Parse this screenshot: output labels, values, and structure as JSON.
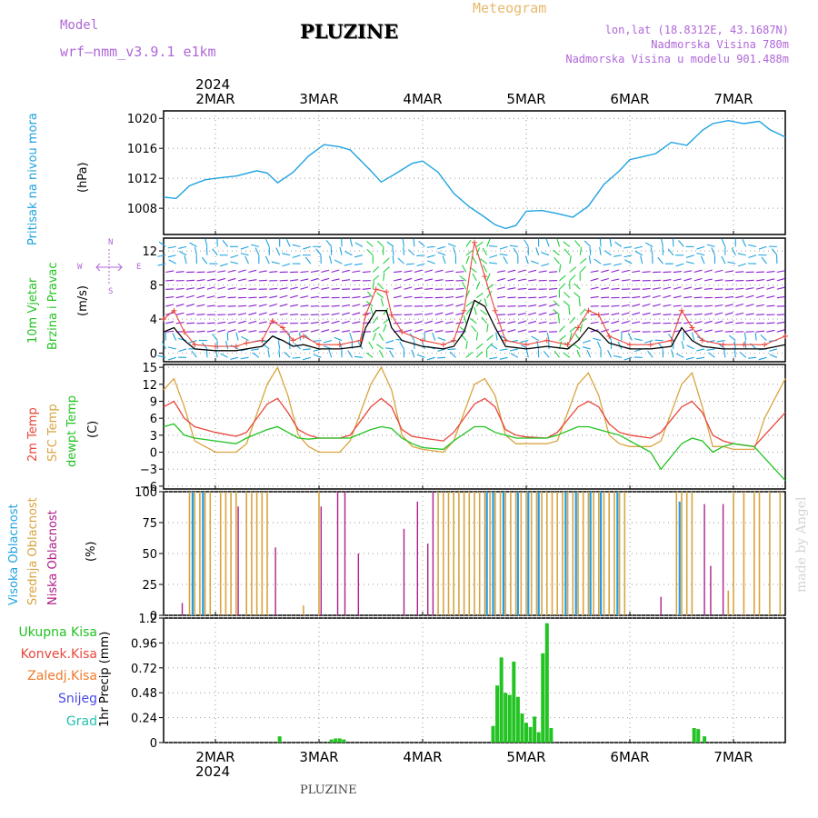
{
  "header": {
    "model_label": "Model",
    "model_value": "wrf–nmm_v3.9.1  e1km",
    "station": "PLUZINE",
    "meteogram_label": "Meteogram",
    "coords": "lon,lat (18.8312E, 43.1687N)",
    "altitude": "Nadmorska Visina 780m",
    "model_altitude": "Nadmorska Visina u modelu 901.488m",
    "year_top": "2024",
    "year_bottom": "2024",
    "footer_station": "PLUZINE",
    "watermark": "made by Angel"
  },
  "colors": {
    "pressure": "#1fa3e0",
    "temp2m": "#e8473c",
    "sfc": "#d9a440",
    "dewpt": "#22c322",
    "high_cloud": "#1f9ee6",
    "mid_cloud": "#d9a440",
    "low_cloud": "#b0208a",
    "precip": "#22c322",
    "convective": "#e8473c",
    "frozen": "#f07a2a",
    "snow": "#4a4ae6",
    "graupel": "#22c3b0",
    "wind_arrow": "#8a1fd0",
    "wind_alt": "#1fa3e0",
    "wind_green": "#22d040",
    "wind_speed": "#000000",
    "wind_gust": "#e8473c"
  },
  "chart_data": [
    {
      "type": "line",
      "panel": "pressure",
      "ylabel_main": "Pritisak na nivou mora",
      "ylabel_unit": "(hPa)",
      "ylim": [
        1004.5,
        1021
      ],
      "yticks": [
        "1020",
        "1016",
        "1012",
        "1008"
      ],
      "x_days": [
        "2MAR",
        "3MAR",
        "4MAR",
        "5MAR",
        "6MAR",
        "7MAR"
      ],
      "x": [
        1.5,
        1.62,
        1.75,
        1.9,
        2.0,
        2.2,
        2.4,
        2.5,
        2.6,
        2.75,
        2.9,
        3.05,
        3.2,
        3.3,
        3.5,
        3.6,
        3.75,
        3.9,
        4.0,
        4.15,
        4.3,
        4.45,
        4.6,
        4.7,
        4.8,
        4.9,
        5.0,
        5.15,
        5.3,
        5.45,
        5.6,
        5.75,
        5.9,
        6.0,
        6.1,
        6.25,
        6.4,
        6.55,
        6.7,
        6.8,
        6.95,
        7.1,
        7.25,
        7.35,
        7.5
      ],
      "y": [
        1009.5,
        1009.3,
        1011.0,
        1011.8,
        1012.0,
        1012.3,
        1013.0,
        1012.7,
        1011.4,
        1012.8,
        1015.0,
        1016.5,
        1016.2,
        1015.8,
        1013.0,
        1011.5,
        1012.7,
        1014.0,
        1014.3,
        1012.8,
        1010.0,
        1008.2,
        1006.8,
        1005.8,
        1005.3,
        1005.7,
        1007.6,
        1007.7,
        1007.3,
        1006.8,
        1008.3,
        1011.2,
        1013.0,
        1014.5,
        1014.8,
        1015.3,
        1016.8,
        1016.4,
        1018.4,
        1019.3,
        1019.7,
        1019.3,
        1019.6,
        1018.5,
        1017.5
      ]
    },
    {
      "type": "line",
      "panel": "wind",
      "ylabel_main": "10m Vjetar",
      "ylabel_sub": "Brzina i Pravac",
      "ylabel_unit": "(m/s)",
      "compass_n": "N",
      "compass_w": "W",
      "compass_e": "E",
      "compass_s": "S",
      "ylim": [
        -1,
        13.5
      ],
      "yticks": [
        "12",
        "8",
        "4",
        "0"
      ],
      "series": [
        {
          "x": [
            1.5,
            1.6,
            1.7,
            1.8,
            2.0,
            2.2,
            2.3,
            2.45,
            2.55,
            2.65,
            2.75,
            2.85,
            3.0,
            3.2,
            3.4,
            3.45,
            3.55,
            3.65,
            3.7,
            3.8,
            4.0,
            4.2,
            4.3,
            4.4,
            4.5,
            4.6,
            4.7,
            4.8,
            5.0,
            5.2,
            5.4,
            5.5,
            5.6,
            5.7,
            5.8,
            6.0,
            6.2,
            6.4,
            6.5,
            6.6,
            6.7,
            6.9,
            7.1,
            7.3,
            7.5
          ],
          "y": [
            2.5,
            3.0,
            1.5,
            0.5,
            0.3,
            0.3,
            0.5,
            0.8,
            2.0,
            1.5,
            0.8,
            1.0,
            0.5,
            0.5,
            0.8,
            3.0,
            5.0,
            5.0,
            3.0,
            1.5,
            0.8,
            0.5,
            0.8,
            2.5,
            6.2,
            5.5,
            3.0,
            0.8,
            0.5,
            0.8,
            0.5,
            1.5,
            3.0,
            2.5,
            1.2,
            0.5,
            0.5,
            0.8,
            3.0,
            1.5,
            0.8,
            0.5,
            0.5,
            0.5,
            1.0
          ]
        },
        {
          "x": [
            1.5,
            1.6,
            1.7,
            1.8,
            2.0,
            2.2,
            2.3,
            2.45,
            2.55,
            2.65,
            2.75,
            2.85,
            3.0,
            3.2,
            3.4,
            3.45,
            3.55,
            3.65,
            3.7,
            3.8,
            4.0,
            4.2,
            4.3,
            4.4,
            4.5,
            4.6,
            4.7,
            4.8,
            5.0,
            5.2,
            5.4,
            5.5,
            5.6,
            5.7,
            5.8,
            6.0,
            6.2,
            6.4,
            6.5,
            6.6,
            6.7,
            6.9,
            7.1,
            7.3,
            7.5
          ],
          "y": [
            4.0,
            5.0,
            2.5,
            1.0,
            0.8,
            0.8,
            1.2,
            1.5,
            3.8,
            3.0,
            1.5,
            2.0,
            1.0,
            1.0,
            1.5,
            4.5,
            7.5,
            7.2,
            4.5,
            2.5,
            1.5,
            1.0,
            1.5,
            5.0,
            13.0,
            9.0,
            5.0,
            1.5,
            1.0,
            1.5,
            1.0,
            3.0,
            5.0,
            4.5,
            2.0,
            1.0,
            1.0,
            1.5,
            5.0,
            3.0,
            1.5,
            1.0,
            1.0,
            1.0,
            2.0
          ]
        }
      ]
    },
    {
      "type": "line",
      "panel": "temperature",
      "ylabel_main": "2m Temp",
      "ylabel_sub": "SFC Temp",
      "ylabel_third": "dewpt Temp",
      "ylabel_unit": "(C)",
      "ylim": [
        -6.5,
        15.5
      ],
      "yticks": [
        "15",
        "12",
        "9",
        "6",
        "3",
        "0",
        "−3",
        "−6"
      ],
      "x": [
        1.5,
        1.6,
        1.7,
        1.8,
        2.0,
        2.2,
        2.3,
        2.5,
        2.6,
        2.7,
        2.8,
        2.9,
        3.0,
        3.2,
        3.3,
        3.5,
        3.6,
        3.7,
        3.8,
        3.9,
        4.0,
        4.2,
        4.3,
        4.5,
        4.6,
        4.7,
        4.8,
        4.9,
        5.0,
        5.2,
        5.3,
        5.5,
        5.6,
        5.7,
        5.8,
        5.9,
        6.0,
        6.2,
        6.3,
        6.5,
        6.6,
        6.7,
        6.8,
        6.9,
        7.0,
        7.2,
        7.3,
        7.5
      ],
      "series": [
        {
          "name": "2m Temp",
          "y": [
            8,
            9,
            6,
            4.5,
            3.5,
            2.8,
            3.5,
            8.5,
            9.5,
            7,
            4,
            3,
            2.5,
            2.5,
            3,
            8,
            9.5,
            8,
            4,
            2.8,
            2.5,
            2,
            3.5,
            8.5,
            9.5,
            8,
            4,
            3,
            2.7,
            2.5,
            3.5,
            8,
            9,
            8,
            5,
            3.5,
            3,
            2.5,
            3.5,
            8,
            9,
            7,
            3,
            2,
            1.5,
            1,
            3,
            7
          ]
        },
        {
          "name": "SFC Temp",
          "y": [
            11,
            13,
            8,
            2,
            0,
            0,
            1.5,
            12,
            15,
            10,
            3,
            1,
            0,
            0,
            2,
            12,
            15,
            11,
            3,
            1,
            0.5,
            0,
            2,
            12,
            13,
            10,
            3,
            1.5,
            1.5,
            1.5,
            2,
            12,
            14,
            10,
            3,
            1.5,
            1,
            1,
            2,
            12,
            14,
            8,
            1,
            1,
            0.5,
            0.5,
            6,
            13
          ]
        },
        {
          "name": "dewpt Temp",
          "y": [
            4.5,
            5,
            3,
            2.5,
            2,
            1.5,
            2.5,
            4,
            4.5,
            3.5,
            2.5,
            2.3,
            2.5,
            2.5,
            2.5,
            4,
            4.5,
            4.2,
            2.5,
            1.5,
            0.8,
            0.5,
            2,
            4.5,
            4.5,
            3.5,
            3,
            2.5,
            2.5,
            2.5,
            3,
            4.5,
            4.5,
            4,
            3.5,
            3,
            2,
            0,
            -3,
            1.5,
            2.5,
            2,
            0,
            1,
            1.5,
            1,
            -1,
            -5
          ]
        }
      ]
    },
    {
      "type": "bar",
      "panel": "clouds",
      "ylabel_main": "Visoka Oblacnost",
      "ylabel_sub": "Srednja Oblacnost",
      "ylabel_third": "Niska Oblacnost",
      "ylabel_unit": "(%)",
      "ylim": [
        0,
        100
      ],
      "yticks": [
        "100",
        "75",
        "50",
        "25",
        "0"
      ],
      "mid_x": [
        1.75,
        1.8,
        1.85,
        1.9,
        1.95,
        2.05,
        2.1,
        2.15,
        2.2,
        2.3,
        2.35,
        2.4,
        2.45,
        2.5,
        2.85,
        3.0,
        4.15,
        4.2,
        4.25,
        4.3,
        4.35,
        4.4,
        4.45,
        4.5,
        4.55,
        4.6,
        4.65,
        4.7,
        4.75,
        4.8,
        4.85,
        4.9,
        4.95,
        5.0,
        5.05,
        5.1,
        5.15,
        5.2,
        5.25,
        5.3,
        5.35,
        5.4,
        5.45,
        5.5,
        5.55,
        5.6,
        5.65,
        5.7,
        5.75,
        5.8,
        5.85,
        5.9,
        5.95,
        6.45,
        6.5,
        6.55,
        6.6,
        6.95,
        7.0,
        7.1,
        7.2,
        7.25,
        7.35,
        7.45
      ],
      "mid_y": [
        100,
        100,
        100,
        100,
        100,
        100,
        100,
        100,
        100,
        100,
        100,
        100,
        100,
        100,
        8,
        100,
        100,
        100,
        100,
        100,
        100,
        100,
        100,
        100,
        100,
        100,
        100,
        100,
        100,
        100,
        100,
        100,
        100,
        100,
        100,
        100,
        100,
        100,
        100,
        100,
        100,
        100,
        100,
        100,
        100,
        100,
        100,
        100,
        100,
        100,
        100,
        100,
        100,
        100,
        100,
        100,
        100,
        20,
        100,
        100,
        100,
        100,
        100,
        100
      ],
      "high_x": [
        1.78,
        1.88,
        4.62,
        4.68,
        4.78,
        4.92,
        5.02,
        5.12,
        5.38,
        5.48,
        5.62,
        5.72,
        5.88,
        6.48
      ],
      "high_y": [
        100,
        100,
        100,
        100,
        100,
        100,
        100,
        100,
        100,
        100,
        100,
        100,
        100,
        92
      ],
      "low_x": [
        1.68,
        2.22,
        2.58,
        3.02,
        3.18,
        3.25,
        3.38,
        3.82,
        3.95,
        4.05,
        4.1,
        6.3,
        6.72,
        6.78,
        6.9
      ],
      "low_y": [
        10,
        88,
        55,
        88,
        100,
        100,
        50,
        70,
        92,
        58,
        100,
        15,
        90,
        40,
        90
      ]
    },
    {
      "type": "bar",
      "panel": "precip",
      "ylabel_main": "1hr Precip (mm)",
      "legend": [
        "Ukupna  Kisa",
        "Konvek.Kisa",
        "Zaledj.Kisa",
        "Snijeg",
        "Grad"
      ],
      "ylim": [
        0,
        1.2
      ],
      "yticks": [
        "1.2",
        "0.96",
        "0.72",
        "0.48",
        "0.24",
        "0"
      ],
      "x": [
        2.62,
        3.12,
        3.16,
        3.2,
        3.24,
        4.68,
        4.72,
        4.76,
        4.8,
        4.84,
        4.88,
        4.92,
        4.96,
        5.0,
        5.04,
        5.08,
        5.12,
        5.16,
        5.2,
        5.24,
        5.28,
        5.32,
        6.62,
        6.66,
        6.72
      ],
      "y": [
        0.06,
        0.03,
        0.04,
        0.04,
        0.03,
        0.16,
        0.55,
        0.82,
        0.48,
        0.46,
        0.78,
        0.44,
        0.28,
        0.19,
        0.15,
        0.25,
        0.1,
        0.86,
        1.15,
        0.14,
        0.0,
        0.0,
        0.14,
        0.13,
        0.06
      ]
    }
  ]
}
